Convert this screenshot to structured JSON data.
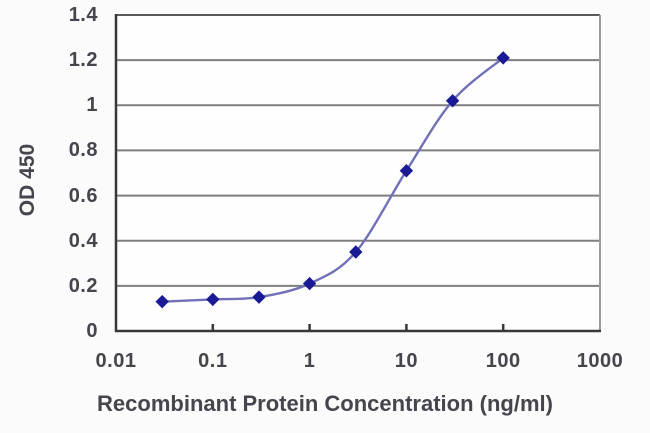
{
  "chart_data": {
    "type": "line",
    "title": "",
    "xlabel": "Recombinant Protein Concentration (ng/ml)",
    "ylabel": "OD 450",
    "x_scale": "log",
    "xlim": [
      0.01,
      1000
    ],
    "ylim": [
      0,
      1.4
    ],
    "x_tick_labels": [
      "0.01",
      "0.1",
      "1",
      "10",
      "100",
      "1000"
    ],
    "x_tick_values": [
      0.01,
      0.1,
      1,
      10,
      100,
      1000
    ],
    "y_tick_labels": [
      "0",
      "0.2",
      "0.4",
      "0.6",
      "0.8",
      "1",
      "1.2",
      "1.4"
    ],
    "y_tick_values": [
      0,
      0.2,
      0.4,
      0.6,
      0.8,
      1,
      1.2,
      1.4
    ],
    "grid": "horizontal",
    "legend": "none",
    "series": [
      {
        "name": "OD 450",
        "marker": "diamond",
        "x": [
          0.03,
          0.1,
          0.3,
          1,
          3,
          10,
          30,
          100
        ],
        "y": [
          0.13,
          0.14,
          0.15,
          0.21,
          0.35,
          0.71,
          1.02,
          1.21
        ]
      }
    ],
    "colors": {
      "line": "#7171b8",
      "marker": "#1a1a96",
      "grid": "#7f7f7f",
      "axis_dark": "#383838",
      "axis_top": "#5a5a5a",
      "axis_right": "#9c9c9c",
      "plot_background": "#fefefe",
      "page_background": "#fbfbfb",
      "text": "#45454d"
    }
  }
}
